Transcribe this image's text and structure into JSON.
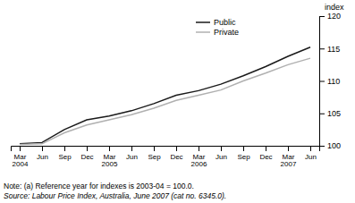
{
  "chart_data": {
    "type": "line",
    "categories": [
      "Mar\n2004",
      "Jun",
      "Sep",
      "Dec",
      "Mar\n2005",
      "Jun",
      "Sep",
      "Dec",
      "Mar\n2006",
      "Jun",
      "Sep",
      "Dec",
      "Mar\n2007",
      "Jun"
    ],
    "series": [
      {
        "name": "Public",
        "color": "#1a1a1a",
        "values": [
          100.3,
          100.5,
          102.5,
          104.0,
          104.6,
          105.4,
          106.5,
          107.8,
          108.5,
          109.5,
          110.8,
          112.2,
          113.8,
          115.2
        ]
      },
      {
        "name": "Private",
        "color": "#b0b0b0",
        "values": [
          100.2,
          100.3,
          102.0,
          103.2,
          104.0,
          104.8,
          105.8,
          107.0,
          107.8,
          108.6,
          110.0,
          111.2,
          112.5,
          113.5
        ]
      }
    ],
    "ylim": [
      100,
      120
    ],
    "yticks": [
      100,
      105,
      110,
      115,
      120
    ],
    "y_label": "index",
    "note": "Note: (a) Reference year for indexes is 2003-04 = 100.0.",
    "source": "Source: Labour Price Index, Australia, June 2007 (cat no. 6345.0).",
    "legend": "upper right",
    "grid": false
  }
}
